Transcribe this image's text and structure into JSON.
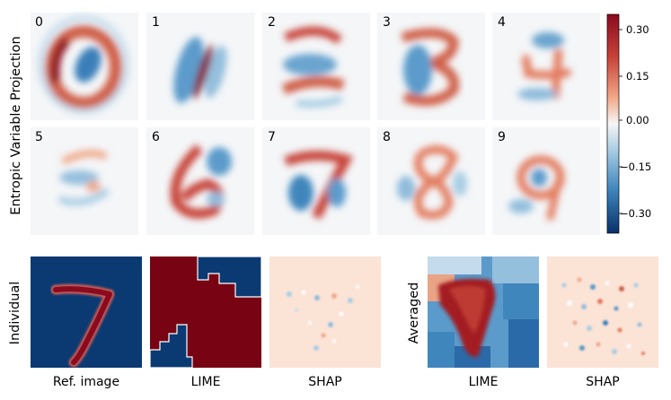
{
  "section_top": {
    "ylabel": "Entropic Variable Projection"
  },
  "digits": [
    "0",
    "1",
    "2",
    "3",
    "4",
    "5",
    "6",
    "7",
    "8",
    "9"
  ],
  "colorbar": {
    "ticks": [
      "0.30",
      "0.15",
      "0.00",
      "−0.15",
      "−0.30"
    ]
  },
  "section_bottom": {
    "individual_label": "Individual",
    "averaged_label": "Averaged",
    "captions": {
      "ref_image": "Ref. image",
      "lime_individual": "LIME",
      "shap_individual": "SHAP",
      "lime_averaged": "LIME",
      "shap_averaged": "SHAP"
    }
  },
  "colors": {
    "positive": "#8b0a1e",
    "mid_positive": "#e37a5d",
    "neutral": "#f4f6f8",
    "mid_negative": "#5b9bcb",
    "negative": "#08306b",
    "ref_background": "#0b3a73",
    "lime_red": "#780413"
  }
}
